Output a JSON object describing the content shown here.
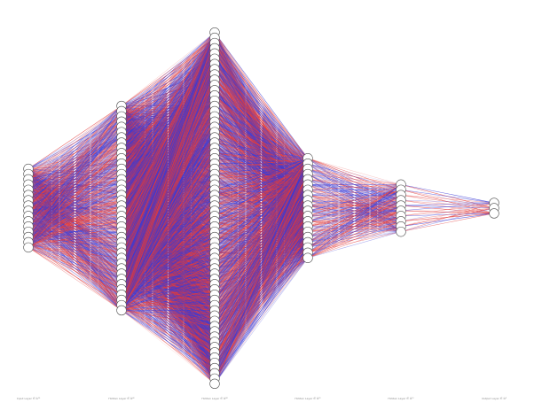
{
  "diagram": {
    "type": "neural-network",
    "layers": [
      {
        "label": "Input Layer ∈ ℝ¹⁶",
        "size": 16
      },
      {
        "label": "Hidden Layer ∈ ℝ⁴⁰",
        "size": 40
      },
      {
        "label": "Hidden Layer ∈ ℝ⁶⁸",
        "size": 68
      },
      {
        "label": "Hidden Layer ∈ ℝ²⁰",
        "size": 20
      },
      {
        "label": "Hidden Layer ∈ ℝ¹⁰",
        "size": 10
      },
      {
        "label": "Output Layer ∈ ℝ³",
        "size": 3
      }
    ],
    "colors": {
      "positive_weight": "#3b3bd6",
      "negative_weight": "#e23b3b",
      "node_fill": "#ffffff",
      "node_stroke": "#555555"
    }
  }
}
